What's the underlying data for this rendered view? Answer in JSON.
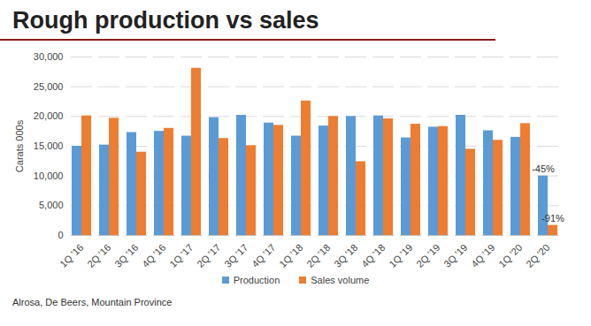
{
  "chart_data": {
    "type": "bar",
    "title": "Rough production vs sales",
    "y_label": "Carats 000s",
    "source": "Alrosa, De Beers, Mountain Province",
    "categories": [
      "1Q '16",
      "2Q '16",
      "3Q '16",
      "4Q '16",
      "1Q '17",
      "2Q '17",
      "3Q '17",
      "4Q '17",
      "1Q '18",
      "2Q '18",
      "3Q '18",
      "4Q '18",
      "1Q '19",
      "2Q '19",
      "3Q '19",
      "4Q '19",
      "1Q '20",
      "2Q '20"
    ],
    "series": [
      {
        "name": "Production",
        "color": "#5b9bd5",
        "values": [
          15000,
          15200,
          17300,
          17500,
          16700,
          19800,
          20200,
          18900,
          16700,
          18400,
          20000,
          20100,
          16400,
          18200,
          20200,
          17600,
          16500,
          10000
        ]
      },
      {
        "name": "Sales volume",
        "color": "#ed7d31",
        "values": [
          20100,
          19700,
          14000,
          18000,
          28100,
          16300,
          15100,
          18500,
          22600,
          20000,
          12400,
          19600,
          18700,
          18300,
          14500,
          16000,
          18800,
          1700
        ]
      }
    ],
    "annotations": [
      {
        "text": "-45%",
        "category": "2Q '20",
        "series": "Production"
      },
      {
        "text": "-91%",
        "category": "2Q '20",
        "series": "Sales volume"
      }
    ],
    "ylim": [
      0,
      30000
    ],
    "yticks": [
      0,
      {
        "value": 5000,
        "label": "5,000"
      },
      {
        "value": 10000,
        "label": "10,000"
      },
      {
        "value": 15000,
        "label": "15,000"
      },
      {
        "value": 20000,
        "label": "20,000"
      },
      {
        "value": 25000,
        "label": "25,000"
      },
      {
        "value": 30000,
        "label": "30,000"
      }
    ],
    "grid": true,
    "legend": "bottom"
  }
}
